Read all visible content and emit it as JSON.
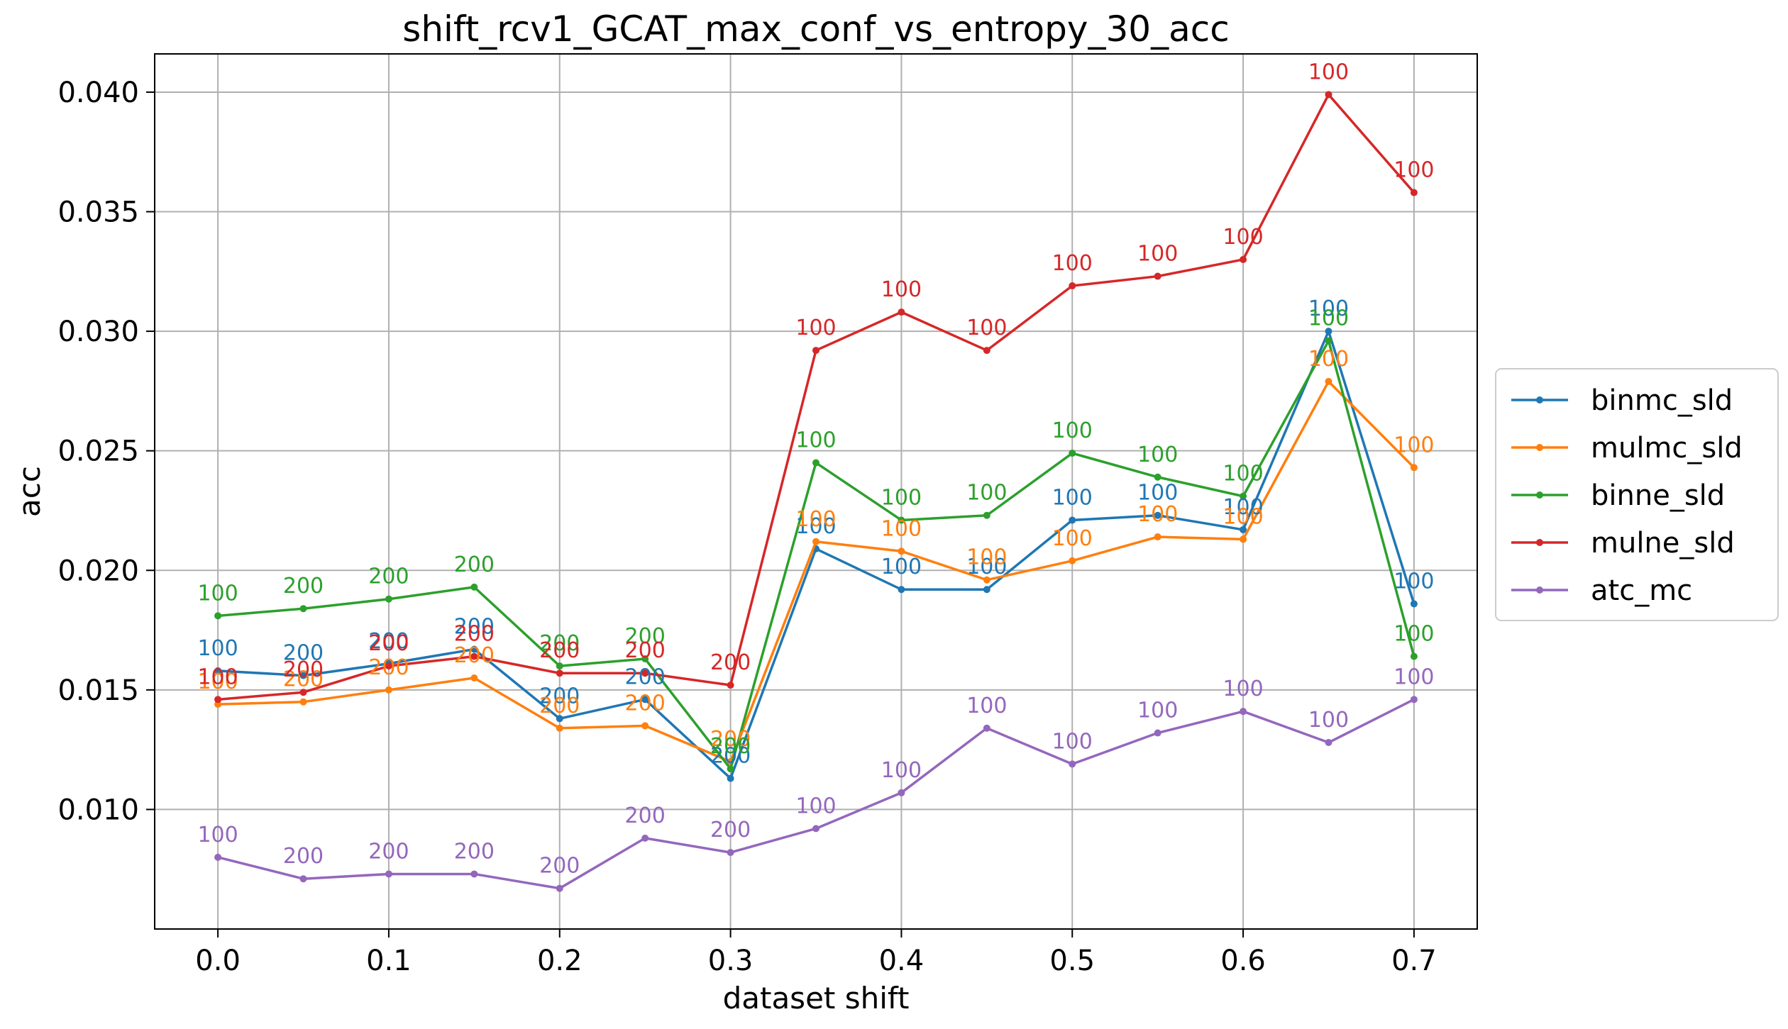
{
  "chart_data": {
    "type": "line",
    "title": "shift_rcv1_GCAT_max_conf_vs_entropy_30_acc",
    "xlabel": "dataset shift",
    "ylabel": "acc",
    "x": [
      0.0,
      0.05,
      0.1,
      0.15,
      0.2,
      0.25,
      0.3,
      0.35,
      0.4,
      0.45,
      0.5,
      0.55,
      0.6,
      0.65,
      0.7
    ],
    "xlim": [
      -0.037,
      0.737
    ],
    "ylim": [
      0.005,
      0.0416
    ],
    "xticks": [
      0.0,
      0.1,
      0.2,
      0.3,
      0.4,
      0.5,
      0.6,
      0.7
    ],
    "xtick_labels": [
      "0.0",
      "0.1",
      "0.2",
      "0.3",
      "0.4",
      "0.5",
      "0.6",
      "0.7"
    ],
    "yticks": [
      0.01,
      0.015,
      0.02,
      0.025,
      0.03,
      0.035,
      0.04
    ],
    "ytick_labels": [
      "0.010",
      "0.015",
      "0.020",
      "0.025",
      "0.030",
      "0.035",
      "0.040"
    ],
    "grid": true,
    "legend_position": "center-right outside",
    "series": [
      {
        "name": "binmc_sld",
        "color": "#1f77b4",
        "values": [
          0.0158,
          0.0156,
          0.0161,
          0.0167,
          0.0138,
          0.0146,
          0.0113,
          0.0209,
          0.0192,
          0.0192,
          0.0221,
          0.0223,
          0.0217,
          0.03,
          0.0186
        ],
        "labels": [
          "100",
          "200",
          "200",
          "200",
          "200",
          "200",
          "200",
          "100",
          "100",
          "100",
          "100",
          "100",
          "100",
          "100",
          "100"
        ]
      },
      {
        "name": "mulmc_sld",
        "color": "#ff7f0e",
        "values": [
          0.0144,
          0.0145,
          0.015,
          0.0155,
          0.0134,
          0.0135,
          0.012,
          0.0212,
          0.0208,
          0.0196,
          0.0204,
          0.0214,
          0.0213,
          0.0279,
          0.0243
        ],
        "labels": [
          "100",
          "200",
          "200",
          "200",
          "200",
          "200",
          "200",
          "100",
          "100",
          "100",
          "100",
          "100",
          "100",
          "100",
          "100"
        ]
      },
      {
        "name": "binne_sld",
        "color": "#2ca02c",
        "values": [
          0.0181,
          0.0184,
          0.0188,
          0.0193,
          0.016,
          0.0163,
          0.0117,
          0.0245,
          0.0221,
          0.0223,
          0.0249,
          0.0239,
          0.0231,
          0.0296,
          0.0164
        ],
        "labels": [
          "100",
          "200",
          "200",
          "200",
          "200",
          "200",
          "200",
          "100",
          "100",
          "100",
          "100",
          "100",
          "100",
          "100",
          "100"
        ]
      },
      {
        "name": "mulne_sld",
        "color": "#d62728",
        "values": [
          0.0146,
          0.0149,
          0.016,
          0.0164,
          0.0157,
          0.0157,
          0.0152,
          0.0292,
          0.0308,
          0.0292,
          0.0319,
          0.0323,
          0.033,
          0.0399,
          0.0358
        ],
        "labels": [
          "100",
          "200",
          "200",
          "200",
          "200",
          "200",
          "200",
          "100",
          "100",
          "100",
          "100",
          "100",
          "100",
          "100",
          "100"
        ]
      },
      {
        "name": "atc_mc",
        "color": "#9467bd",
        "values": [
          0.008,
          0.0071,
          0.0073,
          0.0073,
          0.0067,
          0.0088,
          0.0082,
          0.0092,
          0.0107,
          0.0134,
          0.0119,
          0.0132,
          0.0141,
          0.0128,
          0.0146
        ],
        "labels": [
          "100",
          "200",
          "200",
          "200",
          "200",
          "200",
          "200",
          "100",
          "100",
          "100",
          "100",
          "100",
          "100",
          "100",
          "100"
        ]
      }
    ]
  }
}
